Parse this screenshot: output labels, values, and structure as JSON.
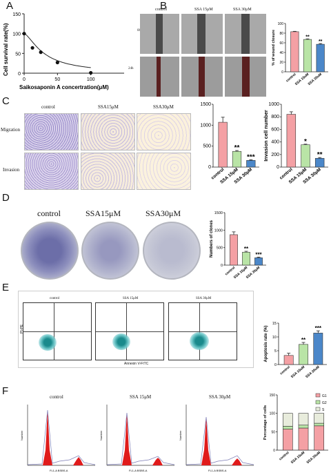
{
  "panels": {
    "A": "A",
    "B": "B",
    "C": "C",
    "D": "D",
    "E": "E",
    "F": "F"
  },
  "colors": {
    "control": "#f4a0a4",
    "ssa15": "#b9e4a6",
    "ssa30": "#4b87c9",
    "g1": "#f4a0a4",
    "g2": "#b9e4a6",
    "s": "#e8ecdc"
  },
  "panelA": {
    "ylabel": "Cell survival rate(%)",
    "xlabel": "Saikosaponin A concertration(μM)",
    "points": [
      {
        "x": 0,
        "y": 100
      },
      {
        "x": 12.5,
        "y": 64
      },
      {
        "x": 25,
        "y": 53
      },
      {
        "x": 50,
        "y": 27
      },
      {
        "x": 100,
        "y": 1
      }
    ],
    "xticks": [
      "0",
      "50",
      "100"
    ],
    "yticks": [
      "0",
      "50",
      "100",
      "150"
    ],
    "xlim": [
      0,
      150
    ],
    "ylim": [
      0,
      150
    ]
  },
  "panelB": {
    "headers": [
      "control",
      "SSA 15μM",
      "SSA 30μM"
    ],
    "rows": [
      "0h",
      "24h"
    ]
  },
  "panelC": {
    "headers": [
      "control",
      "SSA15μM",
      "SSA30μM"
    ],
    "rows": [
      "Migration",
      "Invasion"
    ]
  },
  "panelD": {
    "headers": [
      "control",
      "SSA15μM",
      "SSA30μM"
    ]
  },
  "panelE": {
    "headers": [
      "control",
      "SSA 15μM",
      "SSA 30μM"
    ],
    "ylabel": "PI-PE",
    "xlabel": "Annexin V-FITC"
  },
  "panelF": {
    "headers": [
      "control",
      "SSA 15μM",
      "SSA 30μM"
    ],
    "xlabel": "FL1-A BSBS-A",
    "ylabel": "Number"
  },
  "chart_data": [
    {
      "id": "wound",
      "type": "bar",
      "categories": [
        "control",
        "SSA 15uM",
        "SSA 30uM"
      ],
      "values": [
        83,
        67,
        57
      ],
      "errors": [
        0.8,
        1.2,
        1.5
      ],
      "sig": [
        "",
        "**",
        "**"
      ],
      "ylabel": "% of wound closure",
      "ylim": [
        0,
        100
      ],
      "yticks": [
        "0",
        "20",
        "40",
        "60",
        "80",
        "100"
      ]
    },
    {
      "id": "migration",
      "type": "bar",
      "categories": [
        "control",
        "SSA 15μM",
        "SSA 30μM"
      ],
      "values": [
        1070,
        375,
        160
      ],
      "errors": [
        120,
        20,
        15
      ],
      "sig": [
        "",
        "**",
        "***"
      ],
      "ylabel": "",
      "ylim": [
        0,
        1500
      ],
      "yticks": [
        "0",
        "500",
        "1000",
        "1500"
      ]
    },
    {
      "id": "invasion",
      "type": "bar",
      "categories": [
        "control",
        "SSA 15μM",
        "SSA 30μM"
      ],
      "values": [
        840,
        355,
        140
      ],
      "errors": [
        40,
        10,
        12
      ],
      "sig": [
        "",
        "*",
        "**"
      ],
      "ylabel": "Invasion cell number",
      "ylim": [
        0,
        1000
      ],
      "yticks": [
        "0",
        "200",
        "400",
        "600",
        "800",
        "1000"
      ]
    },
    {
      "id": "clones",
      "type": "bar",
      "categories": [
        "control",
        "SSA 15μM",
        "SSA 30μM"
      ],
      "values": [
        870,
        370,
        210
      ],
      "errors": [
        80,
        25,
        20
      ],
      "sig": [
        "",
        "**",
        "***"
      ],
      "ylabel": "Numbers of clones",
      "ylim": [
        0,
        1500
      ],
      "yticks": [
        "0",
        "500",
        "1000",
        "1500"
      ]
    },
    {
      "id": "apoptosis",
      "type": "bar",
      "categories": [
        "control",
        "SSA 15uM",
        "SSA 30uM"
      ],
      "values": [
        3.3,
        7.3,
        11.4
      ],
      "errors": [
        0.8,
        0.7,
        0.8
      ],
      "sig": [
        "",
        "**",
        "***"
      ],
      "ylabel": "Apoptosis rate (%)",
      "ylim": [
        0,
        15
      ],
      "yticks": [
        "0",
        "5",
        "10",
        "15"
      ]
    },
    {
      "id": "cellcycle",
      "type": "bar",
      "stacked": true,
      "categories": [
        "control",
        "SSA 15uM",
        "SSA 30uM"
      ],
      "series": [
        {
          "name": "G1",
          "values": [
            57,
            60,
            66
          ]
        },
        {
          "name": "G2",
          "values": [
            8,
            8,
            7
          ]
        },
        {
          "name": "S",
          "values": [
            35,
            32,
            27
          ]
        }
      ],
      "ylabel": "Percentage of cells",
      "ylim": [
        0,
        150
      ],
      "yticks": [
        "0",
        "50",
        "100",
        "150"
      ]
    }
  ]
}
